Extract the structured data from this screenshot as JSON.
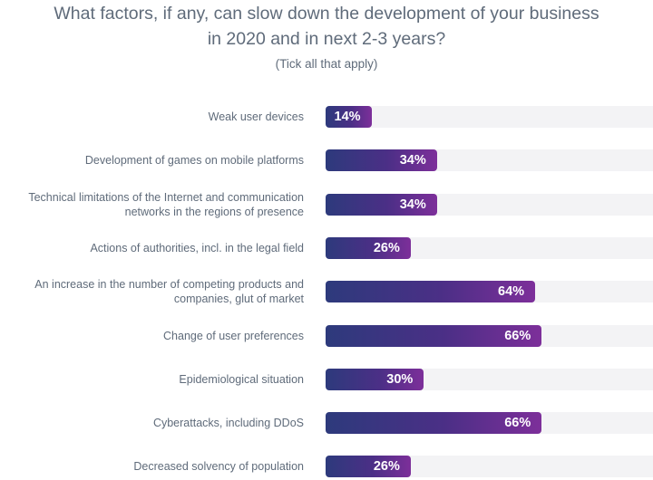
{
  "header": {
    "title_line1": "What factors, if any, can slow down the development of your business",
    "title_line2": "in 2020 and in next 2-3 years?",
    "subtitle": "(Tick all that apply)"
  },
  "colors": {
    "bar_start": "#2d3a7c",
    "bar_end": "#7d2f9a",
    "track": "#f3f3f5",
    "text": "#5f6b7a"
  },
  "chart_data": {
    "type": "bar",
    "orientation": "horizontal",
    "title": "What factors, if any, can slow down the development of your business in 2020 and in next 2-3 years?",
    "subtitle": "(Tick all that apply)",
    "xlim": [
      0,
      100
    ],
    "unit": "%",
    "categories": [
      "Weak user devices",
      "Development of games on mobile platforms",
      "Technical limitations of the Internet and communication networks in the regions of presence",
      "Actions of authorities, incl. in the legal field",
      "An increase in the number of competing products and companies, glut of market",
      "Change of user preferences",
      "Epidemiological situation",
      "Cyberattacks, including DDoS",
      "Decreased solvency of population"
    ],
    "values": [
      14,
      34,
      34,
      26,
      64,
      66,
      30,
      66,
      26
    ],
    "value_labels": [
      "14%",
      "34%",
      "34%",
      "26%",
      "64%",
      "66%",
      "30%",
      "66%",
      "26%"
    ]
  }
}
